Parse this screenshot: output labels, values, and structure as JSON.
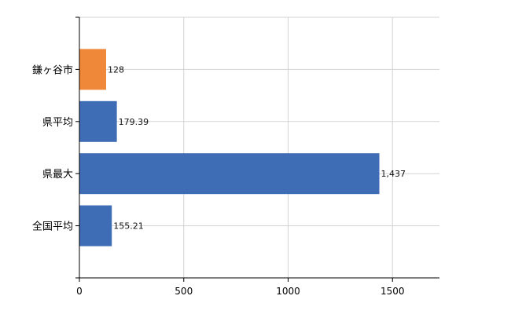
{
  "chart_data": {
    "type": "bar",
    "orientation": "horizontal",
    "categories": [
      "鎌ヶ谷市",
      "県平均",
      "県最大",
      "全国平均"
    ],
    "values": [
      128,
      179.39,
      1437,
      155.21
    ],
    "data_labels": [
      "128",
      "179.39",
      "1,437",
      "155.21"
    ],
    "bar_colors": [
      "#f0883a",
      "#3e6db5",
      "#3e6db5",
      "#3e6db5"
    ],
    "xlim": [
      0,
      1725
    ],
    "xticks": [
      0,
      500,
      1000,
      1500
    ],
    "xtick_labels": [
      "0",
      "500",
      "1000",
      "1500"
    ],
    "grid": true,
    "grid_color": "#d3d3d3",
    "title": "",
    "xlabel": "",
    "ylabel": ""
  }
}
